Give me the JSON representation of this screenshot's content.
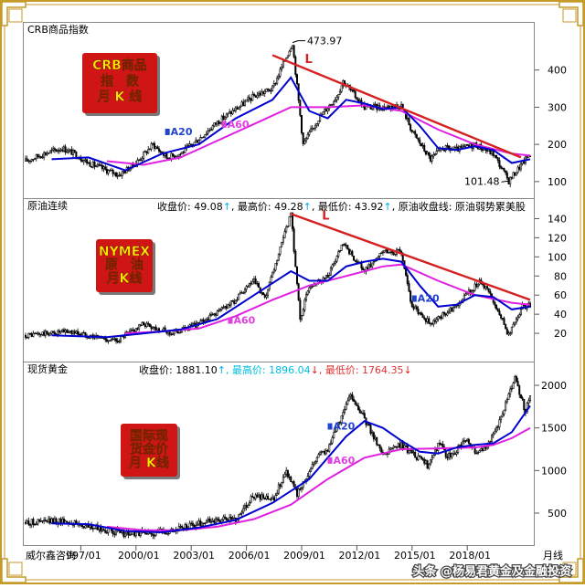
{
  "chart_data": [
    {
      "type": "candlestick-line",
      "panel_title": "CRB商品指数",
      "stamp": [
        "CRB商品",
        "指　数",
        "月 K 线"
      ],
      "ylim": [
        80,
        500
      ],
      "yticks": [
        "100",
        "200",
        "300",
        "400"
      ],
      "ytick_values": [
        100,
        200,
        300,
        400
      ],
      "annotations": [
        {
          "text": "473.97",
          "x": "2008/07",
          "y": 473.97
        },
        {
          "text": "101.48",
          "x": "2020/04",
          "y": 101.48
        }
      ],
      "trendline_label": "L",
      "trendline": [
        [
          "2007/06",
          440
        ],
        [
          "2020/12",
          165
        ]
      ],
      "ma_labels": [
        {
          "text": "A20",
          "x": "2001/08",
          "y": 225
        },
        {
          "text": "A60",
          "x": "2004/09",
          "y": 245
        }
      ],
      "price": [
        [
          "1994/01",
          155
        ],
        [
          "1995/01",
          175
        ],
        [
          "1996/01",
          190
        ],
        [
          "1996/09",
          175
        ],
        [
          "1997/06",
          150
        ],
        [
          "1998/06",
          130
        ],
        [
          "1999/02",
          118
        ],
        [
          "2000/01",
          150
        ],
        [
          "2000/12",
          200
        ],
        [
          "2001/09",
          165
        ],
        [
          "2002/06",
          175
        ],
        [
          "2003/06",
          215
        ],
        [
          "2004/06",
          260
        ],
        [
          "2005/06",
          295
        ],
        [
          "2006/06",
          330
        ],
        [
          "2007/06",
          350
        ],
        [
          "2008/07",
          473.97
        ],
        [
          "2009/02",
          200
        ],
        [
          "2009/12",
          270
        ],
        [
          "2010/12",
          330
        ],
        [
          "2011/04",
          370
        ],
        [
          "2012/06",
          300
        ],
        [
          "2013/06",
          300
        ],
        [
          "2014/06",
          305
        ],
        [
          "2015/01",
          235
        ],
        [
          "2016/01",
          160
        ],
        [
          "2016/09",
          190
        ],
        [
          "2017/06",
          185
        ],
        [
          "2018/06",
          200
        ],
        [
          "2019/06",
          175
        ],
        [
          "2020/04",
          101.48
        ],
        [
          "2021/01",
          150
        ],
        [
          "2021/06",
          175
        ]
      ],
      "ma20": [
        [
          "1995/06",
          160
        ],
        [
          "1997/06",
          165
        ],
        [
          "1999/06",
          130
        ],
        [
          "2001/06",
          175
        ],
        [
          "2003/06",
          200
        ],
        [
          "2005/06",
          270
        ],
        [
          "2007/06",
          320
        ],
        [
          "2008/06",
          380
        ],
        [
          "2009/06",
          290
        ],
        [
          "2010/06",
          270
        ],
        [
          "2011/06",
          320
        ],
        [
          "2012/06",
          310
        ],
        [
          "2013/06",
          295
        ],
        [
          "2014/06",
          300
        ],
        [
          "2015/06",
          250
        ],
        [
          "2016/06",
          190
        ],
        [
          "2017/06",
          185
        ],
        [
          "2018/06",
          195
        ],
        [
          "2019/06",
          185
        ],
        [
          "2020/06",
          150
        ],
        [
          "2021/06",
          160
        ]
      ],
      "ma60": [
        [
          "1998/06",
          155
        ],
        [
          "2000/06",
          145
        ],
        [
          "2002/06",
          165
        ],
        [
          "2004/06",
          210
        ],
        [
          "2006/06",
          255
        ],
        [
          "2008/06",
          300
        ],
        [
          "2010/06",
          300
        ],
        [
          "2012/06",
          305
        ],
        [
          "2014/06",
          290
        ],
        [
          "2016/06",
          240
        ],
        [
          "2018/06",
          200
        ],
        [
          "2020/06",
          175
        ],
        [
          "2021/06",
          170
        ]
      ]
    },
    {
      "type": "candlestick-line",
      "panel_title": "原油连续",
      "stats": [
        {
          "text": "收盘价: 49.08",
          "arrow": "↑"
        },
        {
          "text": ", 最高价: 49.28",
          "arrow": "↑"
        },
        {
          "text": ", 最低价: 43.92",
          "arrow": "↑"
        },
        {
          "text": ", 原油收盘线: 原油弱势累美股",
          "arrow": ""
        }
      ],
      "stamp": [
        "NYMEX",
        "原　油",
        "月K线"
      ],
      "ylim": [
        0,
        150
      ],
      "yticks": [
        "20",
        "40",
        "60",
        "80",
        "100",
        "120",
        "140"
      ],
      "ytick_values": [
        20,
        40,
        60,
        80,
        100,
        120,
        140
      ],
      "trendline_label": "L",
      "trendline": [
        [
          "2008/06",
          145
        ],
        [
          "2021/06",
          55
        ]
      ],
      "ma_labels": [
        {
          "text": "A20",
          "x": "2015/01",
          "y": 53
        },
        {
          "text": "A60",
          "x": "2005/01",
          "y": 30
        }
      ],
      "price": [
        [
          "1994/01",
          18
        ],
        [
          "1996/06",
          22
        ],
        [
          "1998/12",
          12
        ],
        [
          "2000/06",
          30
        ],
        [
          "2001/12",
          20
        ],
        [
          "2003/06",
          30
        ],
        [
          "2005/06",
          55
        ],
        [
          "2006/06",
          75
        ],
        [
          "2007/01",
          55
        ],
        [
          "2008/06",
          145
        ],
        [
          "2008/12",
          35
        ],
        [
          "2009/06",
          70
        ],
        [
          "2010/06",
          80
        ],
        [
          "2011/04",
          113
        ],
        [
          "2012/06",
          85
        ],
        [
          "2013/06",
          105
        ],
        [
          "2014/06",
          105
        ],
        [
          "2015/01",
          48
        ],
        [
          "2016/01",
          30
        ],
        [
          "2017/06",
          50
        ],
        [
          "2018/10",
          75
        ],
        [
          "2019/06",
          55
        ],
        [
          "2020/04",
          18
        ],
        [
          "2021/01",
          48
        ],
        [
          "2021/06",
          49
        ]
      ],
      "ma20": [
        [
          "1995/06",
          18
        ],
        [
          "1998/06",
          16
        ],
        [
          "2000/06",
          20
        ],
        [
          "2002/06",
          24
        ],
        [
          "2004/06",
          35
        ],
        [
          "2006/06",
          60
        ],
        [
          "2008/06",
          85
        ],
        [
          "2009/06",
          75
        ],
        [
          "2010/06",
          75
        ],
        [
          "2011/06",
          90
        ],
        [
          "2012/06",
          95
        ],
        [
          "2013/06",
          98
        ],
        [
          "2014/06",
          95
        ],
        [
          "2015/06",
          70
        ],
        [
          "2016/06",
          48
        ],
        [
          "2017/06",
          50
        ],
        [
          "2018/06",
          60
        ],
        [
          "2019/06",
          58
        ],
        [
          "2020/06",
          45
        ],
        [
          "2021/06",
          48
        ]
      ],
      "ma60": [
        [
          "1999/06",
          20
        ],
        [
          "2001/06",
          22
        ],
        [
          "2003/06",
          25
        ],
        [
          "2005/06",
          38
        ],
        [
          "2007/06",
          55
        ],
        [
          "2009/06",
          70
        ],
        [
          "2011/06",
          80
        ],
        [
          "2013/06",
          90
        ],
        [
          "2014/06",
          92
        ],
        [
          "2016/06",
          75
        ],
        [
          "2018/06",
          60
        ],
        [
          "2020/06",
          52
        ],
        [
          "2021/06",
          50
        ]
      ]
    },
    {
      "type": "candlestick-line",
      "panel_title": "现货黄金",
      "stats": [
        {
          "text": "收盘价: 1881.10",
          "arrow": "↑",
          "color": "#000000"
        },
        {
          "text": ", 最高价: 1896.04",
          "arrow": "↓",
          "color": "#00c0e0"
        },
        {
          "text": ", 最低价: 1764.35",
          "arrow": "↓",
          "color": "#e03030"
        }
      ],
      "stamp": [
        "国际现",
        "货金价",
        "月 K线"
      ],
      "ylim": [
        200,
        2150
      ],
      "yticks": [
        "500",
        "1000",
        "1500",
        "2000"
      ],
      "ytick_values": [
        500,
        1000,
        1500,
        2000
      ],
      "x_axis_labels": [
        "997/01",
        "2000/01",
        "2003/01",
        "2006/01",
        "2009/01",
        "2012/01",
        "2015/01",
        "2018/01",
        "月线"
      ],
      "x_axis_values": [
        "1997/01",
        "2000/01",
        "2003/01",
        "2006/01",
        "2009/01",
        "2012/01",
        "2015/01",
        "2018/01",
        null
      ],
      "footer_left": "威尔鑫咨询",
      "ma_labels": [
        {
          "text": "A20",
          "x": "2010/06",
          "y": 1480
        },
        {
          "text": "A60",
          "x": "2010/06",
          "y": 1080
        }
      ],
      "price": [
        [
          "1994/01",
          390
        ],
        [
          "1996/02",
          410
        ],
        [
          "1997/06",
          340
        ],
        [
          "1999/07",
          255
        ],
        [
          "2001/01",
          270
        ],
        [
          "2002/06",
          320
        ],
        [
          "2004/01",
          410
        ],
        [
          "2005/06",
          430
        ],
        [
          "2006/05",
          700
        ],
        [
          "2007/06",
          650
        ],
        [
          "2008/03",
          1000
        ],
        [
          "2008/10",
          720
        ],
        [
          "2009/12",
          1200
        ],
        [
          "2010/06",
          1250
        ],
        [
          "2011/09",
          1900
        ],
        [
          "2012/06",
          1600
        ],
        [
          "2013/06",
          1200
        ],
        [
          "2014/06",
          1300
        ],
        [
          "2015/12",
          1050
        ],
        [
          "2016/07",
          1350
        ],
        [
          "2016/12",
          1150
        ],
        [
          "2018/01",
          1350
        ],
        [
          "2018/08",
          1180
        ],
        [
          "2019/06",
          1400
        ],
        [
          "2020/08",
          2070
        ],
        [
          "2021/03",
          1700
        ],
        [
          "2021/06",
          1881.1
        ]
      ],
      "ma20": [
        [
          "1995/06",
          380
        ],
        [
          "1997/06",
          370
        ],
        [
          "1999/06",
          290
        ],
        [
          "2001/06",
          275
        ],
        [
          "2003/06",
          330
        ],
        [
          "2005/06",
          420
        ],
        [
          "2007/06",
          620
        ],
        [
          "2009/06",
          900
        ],
        [
          "2011/06",
          1400
        ],
        [
          "2012/06",
          1580
        ],
        [
          "2013/06",
          1500
        ],
        [
          "2014/06",
          1350
        ],
        [
          "2015/06",
          1220
        ],
        [
          "2016/06",
          1200
        ],
        [
          "2017/06",
          1270
        ],
        [
          "2018/06",
          1300
        ],
        [
          "2019/06",
          1320
        ],
        [
          "2020/06",
          1450
        ],
        [
          "2021/06",
          1760
        ]
      ],
      "ma60": [
        [
          "1998/06",
          340
        ],
        [
          "2000/06",
          300
        ],
        [
          "2002/06",
          300
        ],
        [
          "2004/06",
          340
        ],
        [
          "2006/06",
          430
        ],
        [
          "2008/06",
          600
        ],
        [
          "2010/06",
          900
        ],
        [
          "2012/06",
          1150
        ],
        [
          "2014/06",
          1250
        ],
        [
          "2016/06",
          1260
        ],
        [
          "2018/06",
          1270
        ],
        [
          "2019/06",
          1300
        ],
        [
          "2020/06",
          1380
        ],
        [
          "2021/06",
          1500
        ]
      ]
    }
  ],
  "watermark": "头条 @杨易君黄金及金融投资",
  "colors": {
    "price": "#000000",
    "ma20": "#0000d0",
    "ma60": "#e020e0",
    "trend": "#d42020",
    "stamp_bg": "#d01515",
    "stamp_text": "#ffee00",
    "frame": "#c59a28",
    "ma20_marker": "#2244cc",
    "ma60_marker": "#e040e0"
  }
}
